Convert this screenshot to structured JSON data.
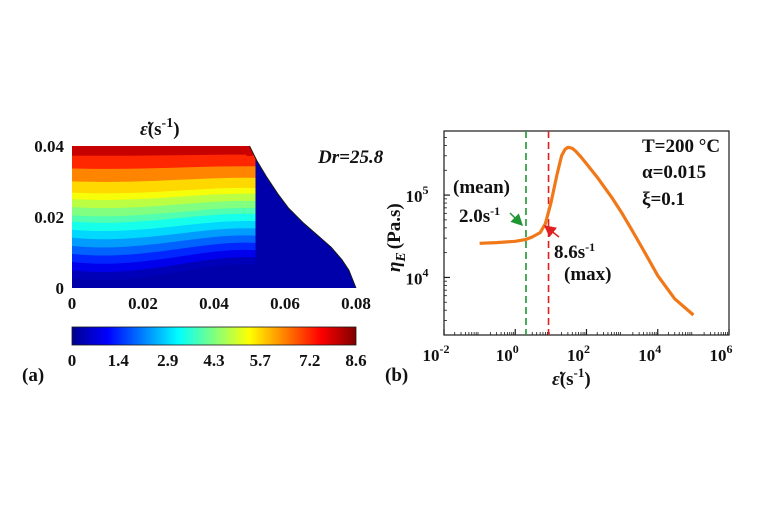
{
  "chart_data": [
    {
      "type": "heatmap",
      "panel_label": "(a)",
      "title_symbol": "ε̇",
      "title_units": "(s",
      "title_exp": "-1",
      "title_close": ")",
      "annotation": "Dr=25.8",
      "x_ticks": [
        "0",
        "0.02",
        "0.04",
        "0.06",
        "0.08"
      ],
      "y_ticks": [
        "0",
        "0.02",
        "0.04"
      ],
      "xlim": [
        0,
        0.08
      ],
      "ylim": [
        0,
        0.04
      ],
      "colorbar_ticks": [
        "0",
        "1.4",
        "2.9",
        "4.3",
        "5.7",
        "7.2",
        "8.6"
      ],
      "colorbar_range": [
        0,
        8.6
      ],
      "colormap": "jet",
      "boundary_curve": {
        "x": [
          0.05,
          0.052,
          0.055,
          0.058,
          0.061,
          0.065,
          0.069,
          0.073,
          0.076,
          0.078,
          0.079,
          0.08
        ],
        "y": [
          0.04,
          0.036,
          0.031,
          0.0265,
          0.0225,
          0.0185,
          0.015,
          0.0115,
          0.008,
          0.005,
          0.0025,
          0.0
        ]
      }
    },
    {
      "type": "line",
      "panel_label": "(b)",
      "xscale": "log",
      "yscale": "log",
      "xlabel_symbol": "ε̇",
      "xlabel_units": "(s",
      "xlabel_exp": "-1",
      "xlabel_close": ")",
      "ylabel_symbol": "η",
      "ylabel_sub": "E",
      "ylabel_units": "(Pa.s)",
      "x_ticks": [
        {
          "base": "10",
          "exp": "-2"
        },
        {
          "base": "10",
          "exp": "0"
        },
        {
          "base": "10",
          "exp": "2"
        },
        {
          "base": "10",
          "exp": "4"
        },
        {
          "base": "10",
          "exp": "6"
        }
      ],
      "y_ticks": [
        {
          "base": "10",
          "exp": "4"
        },
        {
          "base": "10",
          "exp": "5"
        }
      ],
      "xlim": [
        0.01,
        1000000
      ],
      "ylim": [
        2000,
        600000
      ],
      "series": [
        {
          "color": "#f07818",
          "x": [
            0.1,
            0.3,
            1,
            2,
            3,
            5,
            7,
            10,
            15,
            20,
            25,
            30,
            40,
            50,
            70,
            100,
            200,
            500,
            1000,
            2000,
            5000,
            10000,
            30000,
            100000
          ],
          "y": [
            26000,
            26500,
            27500,
            29000,
            31000,
            35000,
            45000,
            80000,
            180000,
            300000,
            360000,
            380000,
            370000,
            340000,
            290000,
            240000,
            165000,
            95000,
            60000,
            36000,
            18000,
            10500,
            5500,
            3500
          ]
        }
      ],
      "vlines": [
        {
          "x": 2.0,
          "color": "#1e9632",
          "style": "dashed"
        },
        {
          "x": 8.6,
          "color": "#e02020",
          "style": "dashed"
        }
      ],
      "annotations": {
        "mean_label": "(mean)",
        "mean_value": "2.0s",
        "mean_exp": "-1",
        "max_value": "8.6s",
        "max_exp": "-1",
        "max_label": "(max)",
        "params": [
          "T=200 °C",
          "α=0.015",
          "ξ=0.1"
        ]
      },
      "colors": {
        "mean": "#1e9632",
        "max": "#e02020",
        "params": "#2e86de",
        "curve": "#f07818"
      }
    }
  ]
}
